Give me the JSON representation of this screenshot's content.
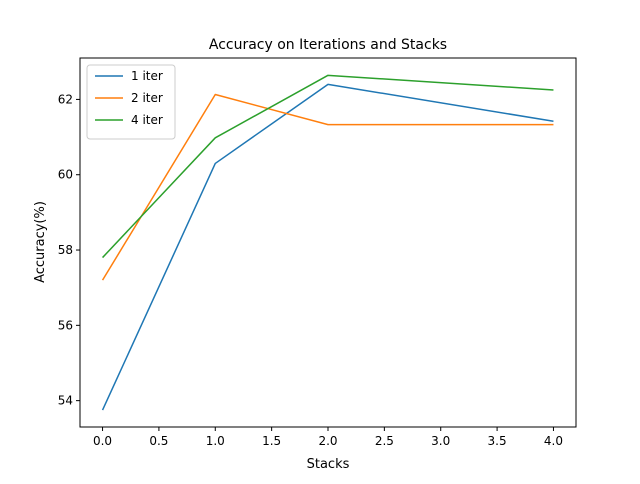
{
  "chart_data": {
    "type": "line",
    "title": "Accuracy on Iterations and Stacks",
    "xlabel": "Stacks",
    "ylabel": "Accuracy(%)",
    "x": [
      0,
      1,
      2,
      4
    ],
    "xlim": [
      -0.2,
      4.2
    ],
    "ylim": [
      53.3,
      63.1
    ],
    "xticks": [
      0.0,
      0.5,
      1.0,
      1.5,
      2.0,
      2.5,
      3.0,
      3.5,
      4.0
    ],
    "xtick_labels": [
      "0.0",
      "0.5",
      "1.0",
      "1.5",
      "2.0",
      "2.5",
      "3.0",
      "3.5",
      "4.0"
    ],
    "yticks": [
      54,
      56,
      58,
      60,
      62
    ],
    "ytick_labels": [
      "54",
      "56",
      "58",
      "60",
      "62"
    ],
    "grid": false,
    "legend_position": "top-left",
    "series": [
      {
        "name": "1 iter",
        "color": "#1f77b4",
        "values": [
          53.75,
          60.3,
          62.4,
          61.42
        ]
      },
      {
        "name": "2 iter",
        "color": "#ff7f0e",
        "values": [
          57.2,
          62.13,
          61.33,
          61.33
        ]
      },
      {
        "name": "4 iter",
        "color": "#2ca02c",
        "values": [
          57.8,
          60.98,
          62.64,
          62.25
        ]
      }
    ]
  }
}
